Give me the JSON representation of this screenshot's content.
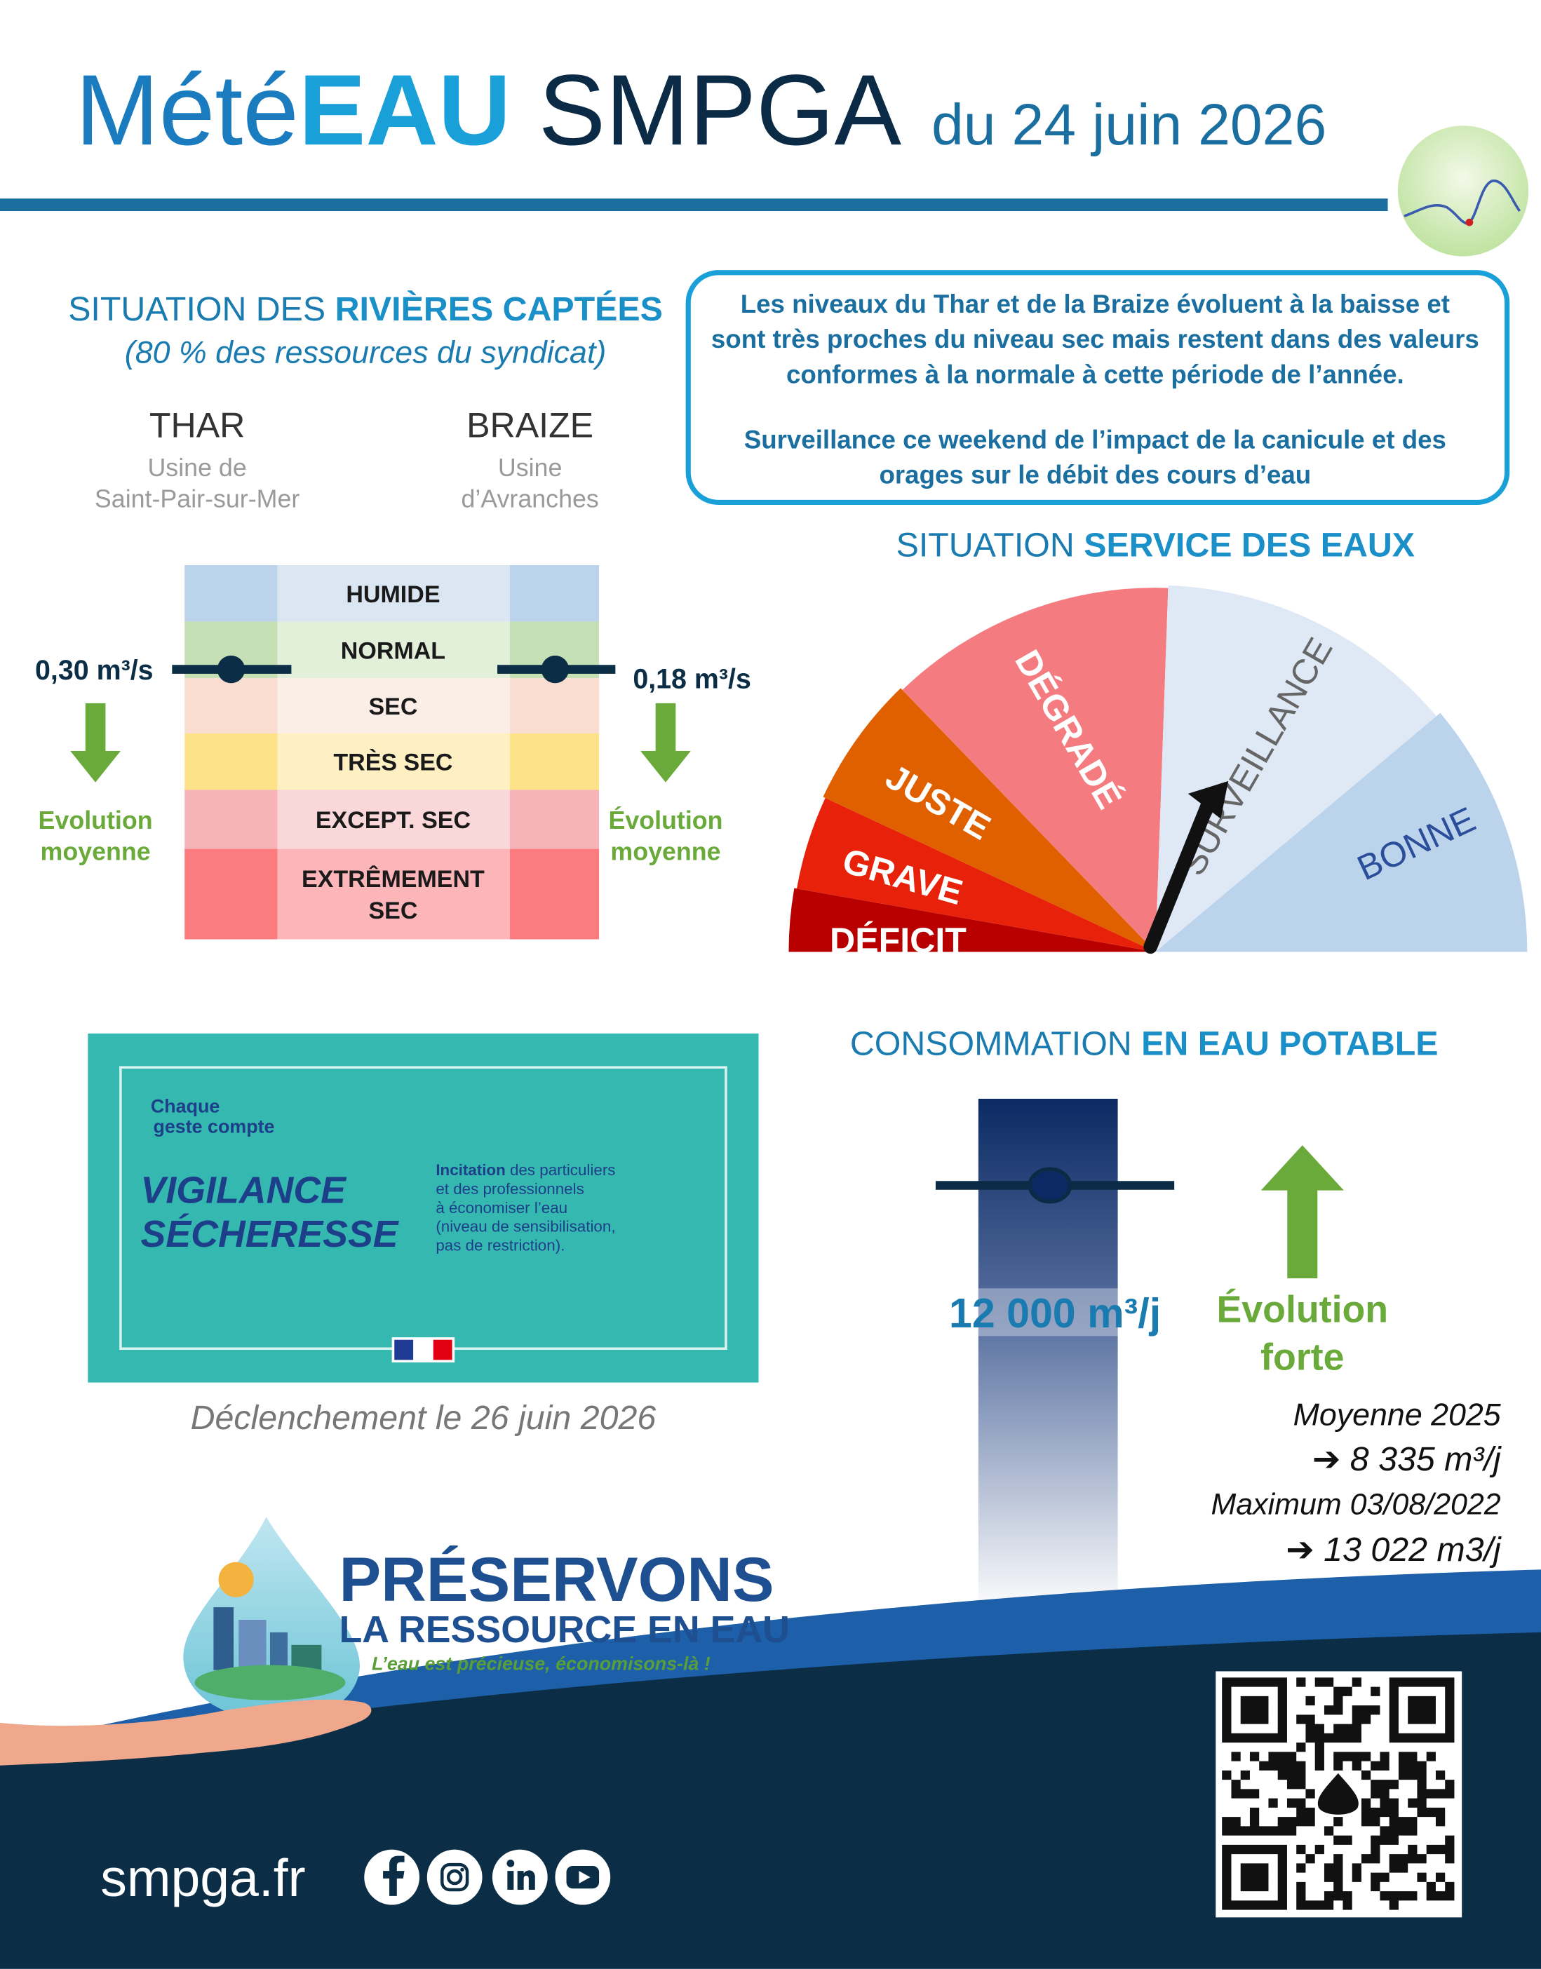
{
  "header": {
    "title_light": "Mété",
    "title_bold": "EAU",
    "title_org": "SMPGA",
    "date": "du 24 juin 2026"
  },
  "rivers": {
    "heading_prefix": "SITUATION DES ",
    "heading_bold": "RIVIÈRES CAPTÉES",
    "subtitle": "(80 % des ressources du syndicat)",
    "levels": [
      [
        "HUMIDE"
      ],
      [
        "NORMAL"
      ],
      [
        "SEC"
      ],
      [
        "TRÈS SEC"
      ],
      [
        "EXCEPT. SEC"
      ],
      [
        "EXTRÊMEMENT",
        "SEC"
      ]
    ],
    "stations": [
      {
        "name": "THAR",
        "site": [
          "Usine de",
          "Saint-Pair-sur-Mer"
        ],
        "flow": "0,30 m³/s",
        "trend": [
          "Evolution",
          "moyenne"
        ]
      },
      {
        "name": "BRAIZE",
        "site": [
          "Usine",
          "d’Avranches"
        ],
        "flow": "0,18 m³/s",
        "trend": [
          "Évolution",
          "moyenne"
        ]
      }
    ]
  },
  "note": {
    "paragraphs": [
      [
        "Les niveaux du Thar et de la Braize évoluent à la baisse et",
        "sont très proches du niveau sec mais restent dans des valeurs",
        "conformes à la normale à cette période de l’année."
      ],
      [
        "Surveillance ce weekend de l’impact de la canicule et des",
        "orages sur le débit des cours d’eau"
      ]
    ]
  },
  "service": {
    "heading_prefix": "SITUATION ",
    "heading_bold": "SERVICE DES EAUX",
    "segments": [
      "DÉFICIT",
      "GRAVE",
      "JUSTE",
      "DÉGRADÉ",
      "SURVEILLANCE",
      "BONNE"
    ]
  },
  "vigilance": {
    "logo": [
      "Chaque",
      "geste compte"
    ],
    "title": [
      "VIGILANCE",
      "SÉCHERESSE"
    ],
    "description_bold": "Incitation",
    "description": [
      " des particuliers",
      "et des professionnels",
      "à économiser l’eau",
      "(niveau de sensibilisation,",
      "pas de restriction)."
    ],
    "caption": "Déclenchement le 26 juin 2026"
  },
  "consumption": {
    "heading_prefix": "CONSOMMATION ",
    "heading_bold": "EN EAU POTABLE",
    "value": "12 000 m³/j",
    "trend": [
      "Évolution",
      "forte"
    ],
    "stats": [
      "Moyenne 2025",
      "➔ 8 335 m³/j",
      "Maximum 03/08/2022",
      "➔ 13 022 m3/j"
    ]
  },
  "campaign": {
    "title": "PRÉSERVONS",
    "subtitle": "LA RESSOURCE EN EAU",
    "tagline": "L’eau est précieuse, économisons-là !"
  },
  "footer": {
    "site": "smpga.fr"
  }
}
